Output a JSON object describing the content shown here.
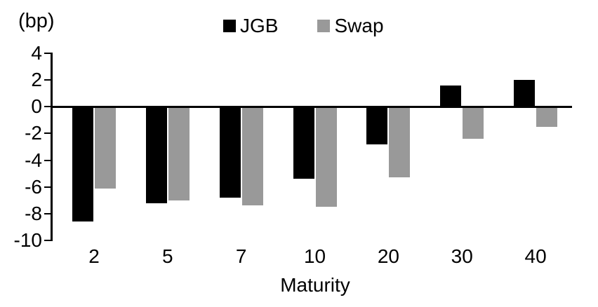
{
  "chart_data": {
    "type": "bar",
    "title": "",
    "ylabel_unit": "(bp)",
    "xlabel": "Maturity",
    "categories": [
      "2",
      "5",
      "7",
      "10",
      "20",
      "30",
      "40"
    ],
    "series": [
      {
        "name": "JGB",
        "color": "#000000",
        "values": [
          -8.6,
          -7.2,
          -6.8,
          -5.4,
          -2.8,
          1.6,
          2.0
        ]
      },
      {
        "name": "Swap",
        "color": "#999999",
        "values": [
          -6.1,
          -7.0,
          -7.4,
          -7.5,
          -5.3,
          -2.4,
          -1.5
        ]
      }
    ],
    "yticks": [
      4,
      2,
      0,
      -2,
      -4,
      -6,
      -8,
      -10
    ],
    "ylim": [
      -10,
      4
    ],
    "legend_position": "top-center",
    "grid": false,
    "background": "#ffffff",
    "text_color": "#000000"
  }
}
